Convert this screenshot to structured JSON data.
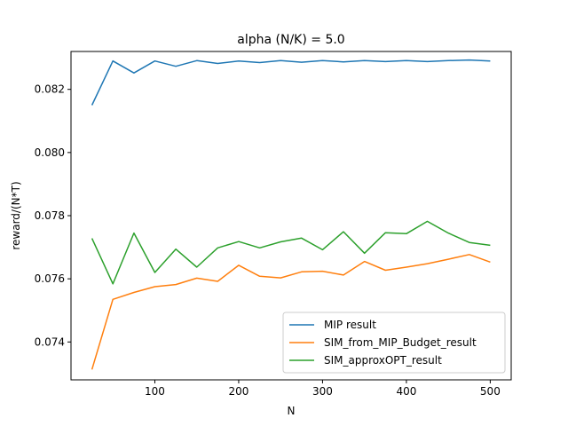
{
  "chart_data": {
    "type": "line",
    "title": "alpha (N/K) = 5.0",
    "xlabel": "N",
    "ylabel": "reward/(N*T)",
    "xlim": [
      0,
      525
    ],
    "ylim": [
      0.0728,
      0.0832
    ],
    "xticks": [
      100,
      200,
      300,
      400,
      500
    ],
    "yticks": [
      0.074,
      0.076,
      0.078,
      0.08,
      0.082
    ],
    "ytick_labels": [
      "0.074",
      "0.076",
      "0.078",
      "0.080",
      "0.082"
    ],
    "grid": false,
    "legend_position": "lower-right",
    "x": [
      25,
      50,
      75,
      100,
      125,
      150,
      175,
      200,
      225,
      250,
      275,
      300,
      325,
      350,
      375,
      400,
      425,
      450,
      475,
      500
    ],
    "series": [
      {
        "name": "MIP result",
        "color": "#1f77b4",
        "values": [
          0.0815,
          0.0829,
          0.08252,
          0.0829,
          0.08273,
          0.08291,
          0.08282,
          0.0829,
          0.08285,
          0.08291,
          0.08286,
          0.08291,
          0.08287,
          0.08291,
          0.08288,
          0.08291,
          0.08288,
          0.08291,
          0.08293,
          0.0829
        ]
      },
      {
        "name": "SIM_from_MIP_Budget_result",
        "color": "#ff7f0e",
        "values": [
          0.07313,
          0.07535,
          0.07557,
          0.07575,
          0.07582,
          0.07602,
          0.07592,
          0.07643,
          0.07608,
          0.07603,
          0.07622,
          0.07624,
          0.07612,
          0.07655,
          0.07627,
          0.07637,
          0.07648,
          0.07662,
          0.07677,
          0.07653
        ]
      },
      {
        "name": "SIM_approxOPT_result",
        "color": "#2ca02c",
        "values": [
          0.07728,
          0.07584,
          0.07745,
          0.0762,
          0.07694,
          0.07637,
          0.07698,
          0.07718,
          0.07698,
          0.07717,
          0.07729,
          0.07692,
          0.07749,
          0.07681,
          0.07746,
          0.07743,
          0.07782,
          0.07745,
          0.07715,
          0.07706
        ]
      }
    ]
  }
}
